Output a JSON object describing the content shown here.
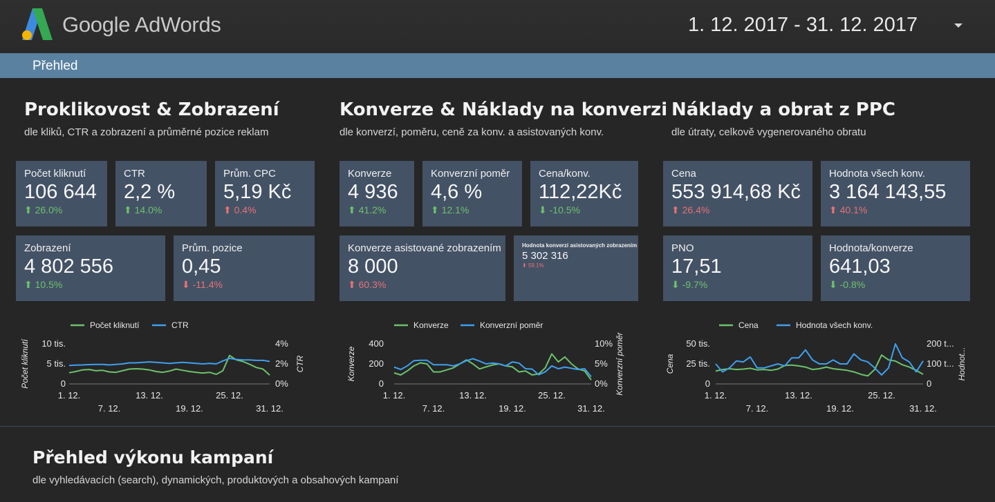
{
  "app": {
    "title": "Google AdWords",
    "date_range": "1. 12. 2017 - 31. 12. 2017",
    "nav_tab": "Přehled"
  },
  "colors": {
    "green": "#6cc36c",
    "blue": "#3fa0f0",
    "card": "#445266",
    "nav": "#5a81a0"
  },
  "sections": [
    {
      "title": "Proklikovost & Zobrazení",
      "subtitle": "dle kliků, CTR a zobrazení a průměrné pozice reklam",
      "cards": [
        {
          "label": "Počet kliknutí",
          "value": "106 644",
          "delta": "26.0%",
          "trend": "up",
          "good": true
        },
        {
          "label": "CTR",
          "value": "2,2 %",
          "delta": "14.0%",
          "trend": "up",
          "good": true
        },
        {
          "label": "Prům. CPC",
          "value": "5,19 Kč",
          "delta": "0.4%",
          "trend": "up",
          "good": false
        },
        {
          "label": "Zobrazení",
          "value": "4 802 556",
          "delta": "10.5%",
          "trend": "up",
          "good": true
        },
        {
          "label": "Prům. pozice",
          "value": "0,45",
          "delta": "-11.4%",
          "trend": "down",
          "good": false
        }
      ]
    },
    {
      "title": "Konverze & Náklady na konverzi",
      "subtitle": "dle konverzí, poměru, ceně za konv. a asistovaných konv.",
      "cards": [
        {
          "label": "Konverze",
          "value": "4 936",
          "delta": "41.2%",
          "trend": "up",
          "good": true
        },
        {
          "label": "Konverzní poměr",
          "value": "4,6 %",
          "delta": "12.1%",
          "trend": "up",
          "good": true
        },
        {
          "label": "Cena/konv.",
          "value": "112,22Kč",
          "delta": "-10.5%",
          "trend": "down",
          "good": true
        },
        {
          "label": "Konverze asistované zobrazením",
          "value": "8 000",
          "delta": "60.3%",
          "trend": "up",
          "good": false
        },
        {
          "label": "Hodnota konverzí asistovaných zobrazením",
          "value": "5 302 316",
          "delta": "59.1%",
          "trend": "up",
          "good": false
        }
      ]
    },
    {
      "title": "Náklady a obrat z PPC",
      "subtitle": "dle útraty, celkově vygenerovaného obratu",
      "cards": [
        {
          "label": "Cena",
          "value": "553 914,68 Kč",
          "delta": "26.4%",
          "trend": "up",
          "good": false
        },
        {
          "label": "Hodnota všech konv.",
          "value": "3 164 143,55",
          "delta": "40.1%",
          "trend": "up",
          "good": false
        },
        {
          "label": "PNO",
          "value": "17,51",
          "delta": "-9.7%",
          "trend": "down",
          "good": true
        },
        {
          "label": "Hodnota/konverze",
          "value": "641,03",
          "delta": "-0.8%",
          "trend": "down",
          "good": true
        }
      ]
    }
  ],
  "chart_data": [
    {
      "type": "line",
      "legend": [
        "Počet kliknutí",
        "CTR"
      ],
      "x_tick_labels_row1": [
        "1. 12.",
        "13. 12.",
        "25. 12."
      ],
      "x_tick_labels_row2": [
        "7. 12.",
        "19. 12.",
        "31. 12."
      ],
      "left_ticks": [
        "10 tis.",
        "5 tis.",
        "0"
      ],
      "right_ticks": [
        "4%",
        "2%",
        "0%"
      ],
      "ylabel_left": "Počet kliknutí",
      "ylabel_right": "CTR",
      "ylim_left": [
        0,
        10000
      ],
      "ylim_right": [
        0,
        4
      ],
      "series": [
        {
          "name": "Počet kliknutí",
          "axis": "left",
          "color": "#6cc36c",
          "values": [
            2800,
            3100,
            3500,
            3600,
            3300,
            3400,
            3000,
            2900,
            3300,
            3700,
            3800,
            3700,
            3500,
            3100,
            2900,
            3200,
            3700,
            3400,
            3100,
            2900,
            2700,
            2900,
            2400,
            3300,
            7100,
            6000,
            5600,
            4900,
            4100,
            3700,
            2200
          ]
        },
        {
          "name": "CTR",
          "axis": "right",
          "color": "#3fa0f0",
          "values": [
            1.85,
            1.88,
            1.9,
            1.93,
            1.95,
            1.95,
            1.9,
            1.95,
            2.0,
            2.1,
            2.1,
            2.15,
            2.2,
            2.15,
            2.1,
            2.05,
            2.1,
            2.15,
            2.1,
            2.05,
            2.0,
            2.05,
            2.0,
            2.3,
            2.55,
            2.45,
            2.4,
            2.4,
            2.35,
            2.35,
            2.25
          ]
        }
      ]
    },
    {
      "type": "line",
      "legend": [
        "Konverze",
        "Konverzní poměr"
      ],
      "x_tick_labels_row1": [
        "1. 12.",
        "13. 12.",
        "25. 12."
      ],
      "x_tick_labels_row2": [
        "7. 12.",
        "19. 12.",
        "31. 12."
      ],
      "left_ticks": [
        "400",
        "200",
        "0"
      ],
      "right_ticks": [
        "10%",
        "5%",
        "0%"
      ],
      "ylabel_left": "Konverze",
      "ylabel_right": "Konverzní poměr",
      "ylim_left": [
        0,
        400
      ],
      "ylim_right": [
        0,
        10
      ],
      "series": [
        {
          "name": "Konverze",
          "axis": "left",
          "color": "#6cc36c",
          "values": [
            110,
            90,
            130,
            180,
            210,
            200,
            120,
            120,
            140,
            160,
            200,
            240,
            200,
            150,
            170,
            190,
            200,
            180,
            170,
            120,
            130,
            90,
            100,
            160,
            300,
            220,
            270,
            200,
            150,
            130,
            40
          ]
        },
        {
          "name": "Konverzní poměr",
          "axis": "right",
          "color": "#3fa0f0",
          "values": [
            4.2,
            3.6,
            4.5,
            5.8,
            5.9,
            5.9,
            4.8,
            4.8,
            4.8,
            4.5,
            5.0,
            5.8,
            6.3,
            5.7,
            5.0,
            5.2,
            5.0,
            4.5,
            5.5,
            5.2,
            3.8,
            3.7,
            2.3,
            3.0,
            4.5,
            3.8,
            4.2,
            3.9,
            3.6,
            3.8,
            1.8
          ]
        }
      ]
    },
    {
      "type": "line",
      "legend": [
        "Cena",
        "Hodnota všech konv."
      ],
      "x_tick_labels_row1": [
        "1. 12.",
        "13. 12.",
        "25. 12."
      ],
      "x_tick_labels_row2": [
        "7. 12.",
        "19. 12.",
        "31. 12."
      ],
      "left_ticks": [
        "50 tis.",
        "25 tis.",
        "0"
      ],
      "right_ticks": [
        "200 t...",
        "100 t...",
        "0"
      ],
      "ylabel_left": "Cena",
      "ylabel_right": "Hodnot...",
      "ylim_left": [
        0,
        50000
      ],
      "ylim_right": [
        0,
        200000
      ],
      "series": [
        {
          "name": "Cena",
          "axis": "left",
          "color": "#6cc36c",
          "values": [
            16000,
            18000,
            19000,
            18000,
            18500,
            19500,
            17500,
            18000,
            17000,
            18500,
            23000,
            23500,
            22500,
            21000,
            18000,
            19000,
            21000,
            19000,
            18000,
            17000,
            15000,
            12000,
            10000,
            18000,
            36000,
            30000,
            28500,
            24000,
            21000,
            17000,
            12000
          ]
        },
        {
          "name": "Hodnota všech konv.",
          "axis": "right",
          "color": "#3fa0f0",
          "values": [
            100000,
            60000,
            80000,
            115000,
            110000,
            135000,
            80000,
            80000,
            90000,
            100000,
            90000,
            130000,
            130000,
            170000,
            120000,
            100000,
            100000,
            120000,
            100000,
            100000,
            150000,
            120000,
            110000,
            80000,
            45000,
            80000,
            200000,
            130000,
            110000,
            60000,
            115000
          ]
        }
      ]
    }
  ],
  "bottom": {
    "title": "Přehled výkonu kampaní",
    "subtitle": "dle vyhledávacích (search), dynamických, produktových a obsahových kampaní"
  }
}
